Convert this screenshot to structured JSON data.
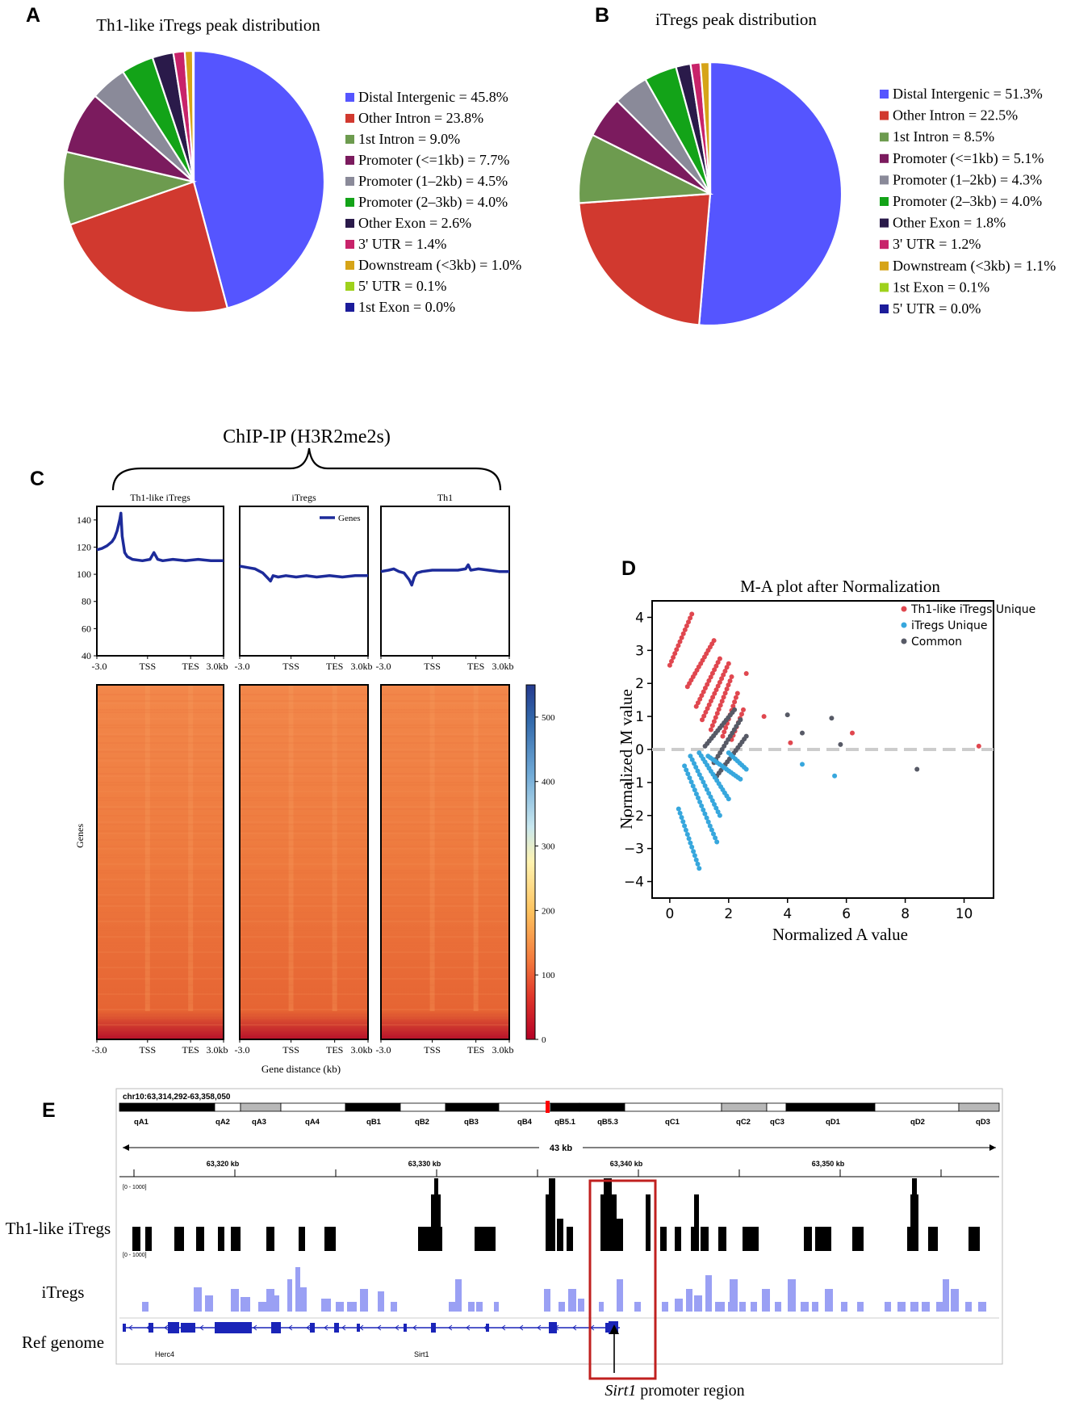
{
  "panels": {
    "A": "A",
    "B": "B",
    "C": "C",
    "D": "D",
    "E": "E"
  },
  "chart_data": [
    {
      "type": "pie",
      "id": "A",
      "title": "Th1-like iTregs peak distribution",
      "slices": [
        {
          "label": "Distal Intergenic",
          "value": 45.8,
          "color": "#5555ff",
          "legend": "Distal Intergenic = 45.8%"
        },
        {
          "label": "Other Intron",
          "value": 23.8,
          "color": "#d1392f",
          "legend": "Other Intron = 23.8%"
        },
        {
          "label": "1st Intron",
          "value": 9.0,
          "color": "#6d9b4f",
          "legend": "1st Intron = 9.0%"
        },
        {
          "label": "Promoter (<=1kb)",
          "value": 7.7,
          "color": "#7b1b5e",
          "legend": "Promoter (<=1kb) = 7.7%"
        },
        {
          "label": "Promoter (1-2kb)",
          "value": 4.5,
          "color": "#8a8a99",
          "legend": "Promoter (1–2kb) = 4.5%"
        },
        {
          "label": "Promoter (2-3kb)",
          "value": 4.0,
          "color": "#13a318",
          "legend": "Promoter (2–3kb) = 4.0%"
        },
        {
          "label": "Other Exon",
          "value": 2.6,
          "color": "#2a1a4a",
          "legend": "Other Exon = 2.6%"
        },
        {
          "label": "3' UTR",
          "value": 1.4,
          "color": "#c8236a",
          "legend": "3' UTR = 1.4%"
        },
        {
          "label": "Downstream (<3kb)",
          "value": 1.0,
          "color": "#d6a418",
          "legend": "Downstream (<3kb) = 1.0%"
        },
        {
          "label": "5' UTR",
          "value": 0.1,
          "color": "#9ed11c",
          "legend": "5' UTR = 0.1%"
        },
        {
          "label": "1st Exon",
          "value": 0.0,
          "color": "#1c1c9a",
          "legend": "1st Exon = 0.0%"
        }
      ]
    },
    {
      "type": "pie",
      "id": "B",
      "title": "iTregs peak distribution",
      "slices": [
        {
          "label": "Distal Intergenic",
          "value": 51.3,
          "color": "#5555ff",
          "legend": "Distal Intergenic = 51.3%"
        },
        {
          "label": "Other Intron",
          "value": 22.5,
          "color": "#d1392f",
          "legend": "Other Intron = 22.5%"
        },
        {
          "label": "1st Intron",
          "value": 8.5,
          "color": "#6d9b4f",
          "legend": "1st Intron = 8.5%"
        },
        {
          "label": "Promoter (<=1kb)",
          "value": 5.1,
          "color": "#7b1b5e",
          "legend": "Promoter (<=1kb) = 5.1%"
        },
        {
          "label": "Promoter (1-2kb)",
          "value": 4.3,
          "color": "#8a8a99",
          "legend": "Promoter (1–2kb) = 4.3%"
        },
        {
          "label": "Promoter (2-3kb)",
          "value": 4.0,
          "color": "#13a318",
          "legend": "Promoter (2–3kb) = 4.0%"
        },
        {
          "label": "Other Exon",
          "value": 1.8,
          "color": "#2a1a4a",
          "legend": "Other Exon = 1.8%"
        },
        {
          "label": "3' UTR",
          "value": 1.2,
          "color": "#c8236a",
          "legend": "3' UTR = 1.2%"
        },
        {
          "label": "Downstream (<3kb)",
          "value": 1.1,
          "color": "#d6a418",
          "legend": "Downstream (<3kb) = 1.1%"
        },
        {
          "label": "1st Exon",
          "value": 0.1,
          "color": "#9ed11c",
          "legend": "1st Exon = 0.1%"
        },
        {
          "label": "5' UTR",
          "value": 0.0,
          "color": "#1c1c9a",
          "legend": "5' UTR = 0.0%"
        }
      ]
    },
    {
      "type": "line",
      "id": "C-profile",
      "title": "ChIP-IP (H3R2me2s)",
      "legend": "Genes",
      "panels": [
        {
          "name": "Th1-like iTregs",
          "x": [
            0,
            4,
            8,
            12,
            14,
            16,
            18,
            19,
            20,
            22,
            24,
            28,
            36,
            42,
            45,
            48,
            52,
            60,
            70,
            80,
            90,
            100
          ],
          "y": [
            118,
            119,
            121,
            124,
            127,
            132,
            140,
            145,
            128,
            116,
            113,
            111,
            110,
            111,
            116,
            111,
            110,
            111,
            110,
            111,
            110,
            110
          ]
        },
        {
          "name": "iTregs",
          "x": [
            0,
            6,
            12,
            18,
            22,
            24,
            26,
            30,
            36,
            44,
            52,
            60,
            70,
            80,
            90,
            100
          ],
          "y": [
            106,
            105,
            104,
            101,
            97,
            95,
            99,
            98,
            99,
            98,
            99,
            98,
            99,
            98,
            99,
            99
          ]
        },
        {
          "name": "Th1",
          "x": [
            0,
            6,
            10,
            14,
            18,
            22,
            24,
            26,
            28,
            32,
            40,
            48,
            60,
            66,
            68,
            70,
            76,
            84,
            92,
            100
          ],
          "y": [
            102,
            103,
            104,
            102,
            101,
            96,
            92,
            98,
            101,
            102,
            103,
            103,
            103,
            104,
            107,
            103,
            104,
            103,
            102,
            102
          ]
        }
      ],
      "ylim": [
        40,
        150
      ],
      "yticks": [
        "40",
        "60",
        "80",
        "100",
        "120",
        "140"
      ],
      "xticks": [
        "-3.0",
        "TSS",
        "TES",
        "3.0kb"
      ],
      "colorbar": {
        "label": "Genes",
        "ticks": [
          "0",
          "100",
          "200",
          "300",
          "400",
          "500"
        ],
        "range": [
          0,
          550
        ]
      },
      "xlabel": "Gene distance (kb)",
      "ylabel": "Genes"
    },
    {
      "type": "scatter",
      "id": "D",
      "title": "M-A plot after Normalization",
      "xlabel": "Normalized A value",
      "ylabel": "Normalized M value",
      "xlim": [
        -0.6,
        11
      ],
      "ylim": [
        -4.5,
        4.5
      ],
      "xticks": [
        "0",
        "2",
        "4",
        "6",
        "8",
        "10"
      ],
      "yticks": [
        "4",
        "3",
        "2",
        "1",
        "0",
        "−1",
        "−2",
        "−3",
        "−4"
      ],
      "series": [
        {
          "name": "Th1-like iTregs Unique",
          "color": "#e0474f"
        },
        {
          "name": "iTregs Unique",
          "color": "#37a7dd"
        },
        {
          "name": "Common",
          "color": "#575a66"
        }
      ],
      "outliers": [
        {
          "s": 0,
          "x": 10.5,
          "y": 0.1
        },
        {
          "s": 0,
          "x": 6.2,
          "y": 0.5
        },
        {
          "s": 0,
          "x": 4.1,
          "y": 0.2
        },
        {
          "s": 0,
          "x": 3.2,
          "y": 1.0
        },
        {
          "s": 0,
          "x": 2.6,
          "y": 2.3
        },
        {
          "s": 1,
          "x": 5.6,
          "y": -0.8
        },
        {
          "s": 1,
          "x": 4.5,
          "y": -0.45
        },
        {
          "s": 2,
          "x": 8.4,
          "y": -0.6
        },
        {
          "s": 2,
          "x": 4.0,
          "y": 1.05
        },
        {
          "s": 2,
          "x": 5.5,
          "y": 0.95
        },
        {
          "s": 2,
          "x": 5.8,
          "y": 0.15
        },
        {
          "s": 2,
          "x": 4.5,
          "y": 0.5
        }
      ]
    }
  ],
  "panelE": {
    "locus": "chr10:63,314,292-63,358,050",
    "bands": [
      "qA1",
      "qA2",
      "qA3",
      "qA4",
      "qB1",
      "qB2",
      "qB3",
      "qB4",
      "qB5.1",
      "qB5.3",
      "qC1",
      "qC2",
      "qC3",
      "qD1",
      "qD2",
      "qD3"
    ],
    "span": "43 kb",
    "ruler": [
      "63,320 kb",
      "63,330 kb",
      "63,340 kb",
      "63,350 kb"
    ],
    "range1": "[0 - 1000]",
    "range2": "[0 - 1000]",
    "track1": "Th1-like iTregs",
    "track2": "iTregs",
    "track3": "Ref genome",
    "gene1": "Herc4",
    "gene2": "Sirt1",
    "annotation_italic": "Sirt1",
    "annotation_rest": " promoter region"
  }
}
